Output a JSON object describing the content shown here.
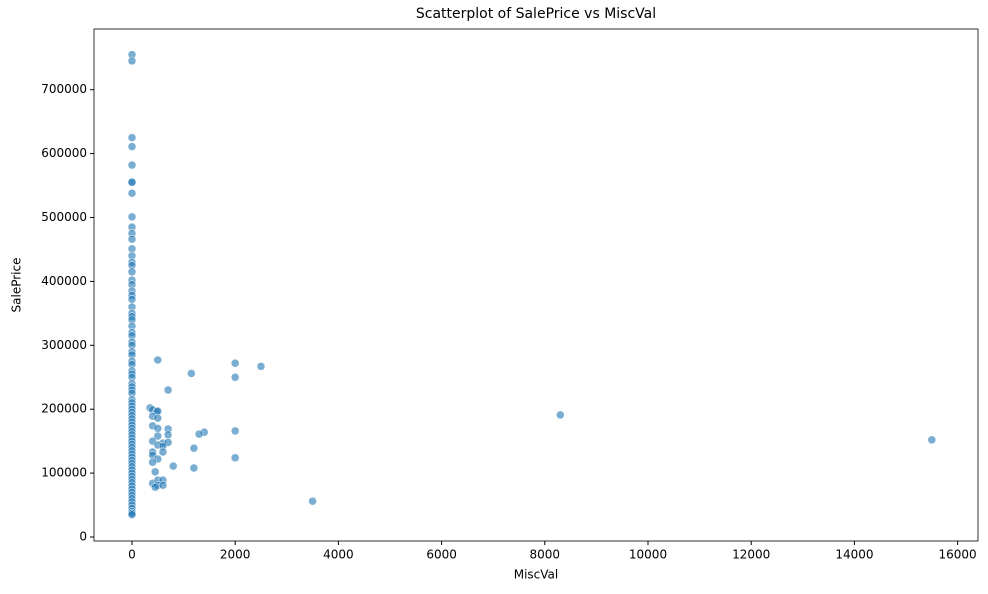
{
  "chart_data": {
    "type": "scatter",
    "title": "Scatterplot of SalePrice vs MiscVal",
    "x_label": "MiscVal",
    "y_label": "SalePrice",
    "color": "#1f77b4",
    "grid": false,
    "xlim": [
      -736,
      16395
    ],
    "ylim": [
      -6260,
      795000
    ],
    "xticks": [
      0,
      2000,
      4000,
      6000,
      8000,
      10000,
      12000,
      14000,
      16000
    ],
    "yticks": [
      0,
      100000,
      200000,
      300000,
      400000,
      500000,
      600000,
      700000
    ],
    "x": [
      0,
      0,
      0,
      0,
      0,
      0,
      0,
      0,
      0,
      0,
      0,
      0,
      0,
      0,
      0,
      0,
      0,
      0,
      0,
      0,
      0,
      0,
      0,
      0,
      0,
      0,
      0,
      0,
      0,
      0,
      0,
      0,
      0,
      0,
      0,
      0,
      0,
      0,
      0,
      0,
      0,
      0,
      0,
      0,
      0,
      0,
      0,
      0,
      0,
      0,
      0,
      0,
      0,
      0,
      0,
      0,
      0,
      0,
      0,
      0,
      0,
      0,
      0,
      0,
      0,
      0,
      0,
      0,
      0,
      0,
      0,
      0,
      0,
      0,
      0,
      0,
      0,
      0,
      0,
      0,
      500,
      1150,
      2000,
      2000,
      2500,
      700,
      8300,
      15500,
      3500,
      2000,
      2000,
      1400,
      1300,
      1200,
      1200,
      800,
      350,
      400,
      480,
      500,
      400,
      500,
      400,
      500,
      700,
      500,
      700,
      400,
      600,
      700,
      500,
      600,
      400,
      400,
      500,
      600,
      400,
      450,
      400,
      500,
      600,
      500,
      600,
      450
    ],
    "y": [
      755000,
      745000,
      625000,
      611000,
      582000,
      556000,
      555000,
      538000,
      501000,
      485000,
      475000,
      466000,
      451000,
      440000,
      430000,
      425000,
      415000,
      402000,
      395000,
      385000,
      378000,
      372000,
      360000,
      350000,
      345000,
      340000,
      330000,
      320000,
      315000,
      305000,
      300000,
      290000,
      285000,
      275000,
      270000,
      260000,
      255000,
      250000,
      240000,
      235000,
      230000,
      225000,
      215000,
      210000,
      205000,
      200000,
      195000,
      190000,
      185000,
      180000,
      175000,
      170000,
      165000,
      160000,
      155000,
      150000,
      145000,
      140000,
      135000,
      130000,
      125000,
      120000,
      115000,
      110000,
      105000,
      100000,
      95000,
      90000,
      85000,
      80000,
      75000,
      70000,
      65000,
      60000,
      55000,
      50000,
      45000,
      40000,
      37000,
      34900,
      277000,
      256000,
      272000,
      250000,
      267000,
      230000,
      191000,
      152000,
      56000,
      166000,
      124000,
      164000,
      161000,
      139000,
      108000,
      111000,
      202000,
      199000,
      196000,
      197000,
      189000,
      186000,
      174000,
      170000,
      169000,
      158000,
      160000,
      150000,
      147000,
      148000,
      144000,
      142000,
      133000,
      128000,
      122000,
      133000,
      117000,
      102000,
      84000,
      89000,
      89000,
      81000,
      81000,
      78000
    ]
  }
}
